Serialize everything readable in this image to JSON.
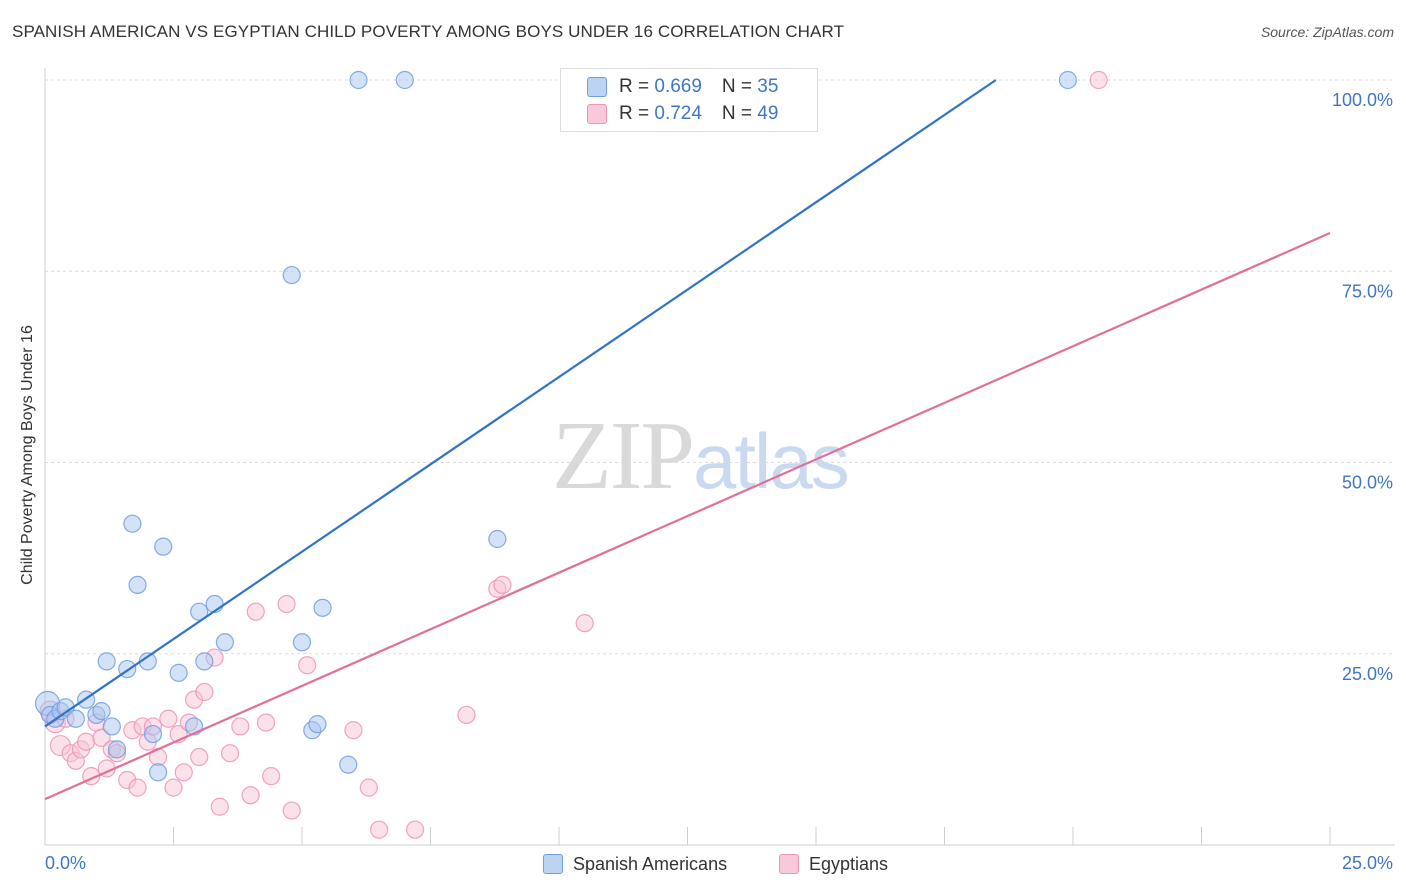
{
  "chart_data": {
    "type": "scatter",
    "title": "SPANISH AMERICAN VS EGYPTIAN CHILD POVERTY AMONG BOYS UNDER 16 CORRELATION CHART",
    "source": "Source: ZipAtlas.com",
    "ylabel": "Child Poverty Among Boys Under 16",
    "xlabel": "",
    "xlim": [
      0,
      25
    ],
    "ylim": [
      0,
      100
    ],
    "x_tick_labels": [
      "0.0%",
      "25.0%"
    ],
    "y_tick_labels": [
      "25.0%",
      "50.0%",
      "75.0%",
      "100.0%"
    ],
    "y_tick_values": [
      25,
      50,
      75,
      100
    ],
    "grid": true,
    "watermark": {
      "zip": "ZIP",
      "atlas": "atlas"
    },
    "legend_position": "top-center",
    "series": [
      {
        "name": "Spanish Americans",
        "color": "#6f9fe0",
        "fill": "#a9c6f0",
        "line_color": "#2f74c8",
        "R": "0.669",
        "N": "35",
        "trend": {
          "x": [
            0,
            18.5
          ],
          "y": [
            15.5,
            100
          ]
        },
        "points": [
          [
            0.05,
            18.5
          ],
          [
            0.1,
            17.0
          ],
          [
            0.2,
            16.5
          ],
          [
            0.3,
            17.5
          ],
          [
            0.4,
            18.0
          ],
          [
            0.6,
            16.5
          ],
          [
            0.8,
            19.0
          ],
          [
            1.0,
            17.0
          ],
          [
            1.1,
            17.5
          ],
          [
            1.2,
            24.0
          ],
          [
            1.3,
            15.5
          ],
          [
            1.4,
            12.5
          ],
          [
            1.6,
            23.0
          ],
          [
            1.7,
            42.0
          ],
          [
            1.8,
            34.0
          ],
          [
            2.0,
            24.0
          ],
          [
            2.1,
            14.5
          ],
          [
            2.2,
            9.5
          ],
          [
            2.3,
            39.0
          ],
          [
            2.6,
            22.5
          ],
          [
            2.9,
            15.5
          ],
          [
            3.0,
            30.5
          ],
          [
            3.1,
            24.0
          ],
          [
            3.3,
            31.5
          ],
          [
            3.5,
            26.5
          ],
          [
            4.8,
            74.5
          ],
          [
            5.0,
            26.5
          ],
          [
            5.2,
            15.0
          ],
          [
            5.3,
            15.8
          ],
          [
            5.4,
            31.0
          ],
          [
            5.9,
            10.5
          ],
          [
            6.1,
            100.0
          ],
          [
            7.0,
            100.0
          ],
          [
            8.8,
            40.0
          ],
          [
            19.9,
            100.0
          ]
        ]
      },
      {
        "name": "Egyptians",
        "color": "#ee94b4",
        "fill": "#f8c3d6",
        "line_color": "#e0709a",
        "R": "0.724",
        "N": "49",
        "trend": {
          "x": [
            0,
            25
          ],
          "y": [
            6.0,
            80.0
          ]
        },
        "points": [
          [
            0.1,
            17.5
          ],
          [
            0.2,
            16.0
          ],
          [
            0.3,
            13.0
          ],
          [
            0.4,
            16.5
          ],
          [
            0.5,
            12.0
          ],
          [
            0.6,
            11.0
          ],
          [
            0.7,
            12.5
          ],
          [
            0.8,
            13.5
          ],
          [
            0.9,
            9.0
          ],
          [
            1.0,
            16.0
          ],
          [
            1.1,
            14.0
          ],
          [
            1.2,
            10.0
          ],
          [
            1.3,
            12.5
          ],
          [
            1.4,
            12.0
          ],
          [
            1.6,
            8.5
          ],
          [
            1.7,
            15.0
          ],
          [
            1.8,
            7.5
          ],
          [
            1.9,
            15.5
          ],
          [
            2.0,
            13.5
          ],
          [
            2.1,
            15.5
          ],
          [
            2.2,
            11.5
          ],
          [
            2.4,
            16.5
          ],
          [
            2.5,
            7.5
          ],
          [
            2.6,
            14.5
          ],
          [
            2.7,
            9.5
          ],
          [
            2.8,
            16.0
          ],
          [
            2.9,
            19.0
          ],
          [
            3.0,
            11.5
          ],
          [
            3.1,
            20.0
          ],
          [
            3.3,
            24.5
          ],
          [
            3.4,
            5.0
          ],
          [
            3.6,
            12.0
          ],
          [
            3.8,
            15.5
          ],
          [
            4.0,
            6.5
          ],
          [
            4.1,
            30.5
          ],
          [
            4.3,
            16.0
          ],
          [
            4.4,
            9.0
          ],
          [
            4.7,
            31.5
          ],
          [
            4.8,
            4.5
          ],
          [
            5.1,
            23.5
          ],
          [
            6.0,
            15.0
          ],
          [
            6.3,
            7.5
          ],
          [
            6.5,
            2.0
          ],
          [
            7.2,
            2.0
          ],
          [
            8.2,
            17.0
          ],
          [
            8.8,
            33.5
          ],
          [
            8.9,
            34.0
          ],
          [
            10.5,
            29.0
          ],
          [
            20.5,
            100.0
          ]
        ]
      }
    ]
  }
}
